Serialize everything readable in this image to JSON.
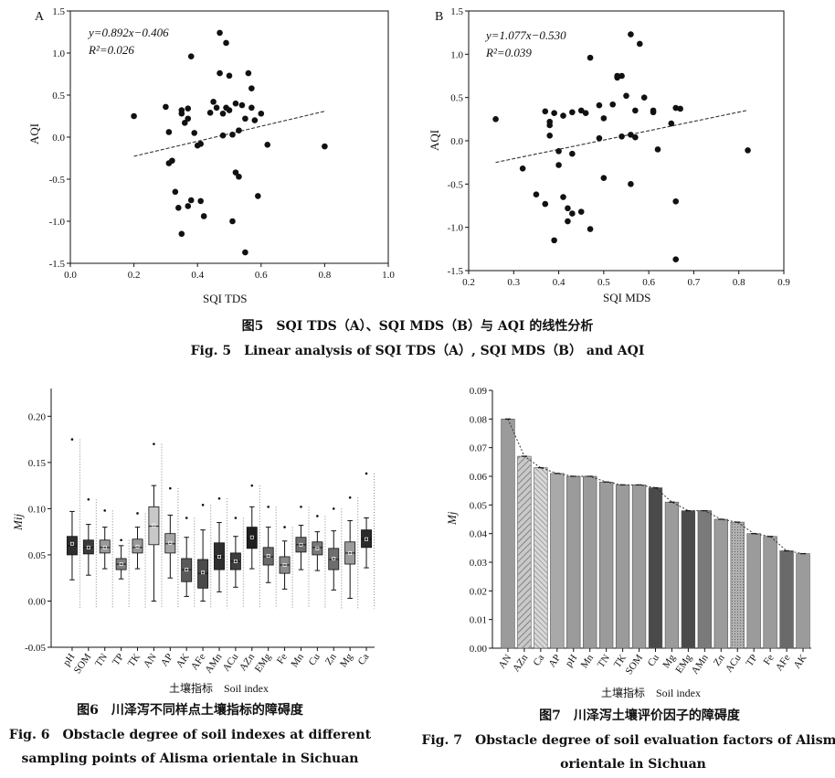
{
  "fig5": {
    "caption_cn": "图5　SQI TDS（A）、SQI MDS（B）与 AQI 的线性分析",
    "caption_en": "Fig. 5　Linear analysis of SQI TDS（A）, SQI MDS（B） and AQI"
  },
  "fig6": {
    "caption_cn": "图6　川泽泻不同样点土壤指标的障碍度",
    "caption_en_1": "Fig. 6　Obstacle degree of soil indexes at different",
    "caption_en_2": "sampling points of Alisma orientale in Sichuan"
  },
  "fig7": {
    "caption_cn": "图7　川泽泻土壤评价因子的障碍度",
    "caption_en_1": "Fig. 7　Obstacle degree of soil evaluation factors of Alisma",
    "caption_en_2": "orientale in Sichuan"
  },
  "chart_data": [
    {
      "type": "scatter",
      "panel": "A",
      "xlabel": "SQI TDS",
      "ylabel": "AQI",
      "xlim": [
        0.0,
        1.0
      ],
      "ylim": [
        -1.5,
        1.5
      ],
      "xticks": [
        "0.0",
        "0.2",
        "0.4",
        "0.6",
        "0.8",
        "1.0"
      ],
      "yticks": [
        "-1.5",
        "-1.0",
        "-0.5",
        "0.0",
        "0.5",
        "1.0",
        "1.5"
      ],
      "equation": "y=0.892x−0.406",
      "r2": "R²=0.026",
      "trend": {
        "slope": 0.892,
        "intercept": -0.406,
        "x_from": 0.2,
        "x_to": 0.8
      },
      "points": [
        [
          0.2,
          0.25
        ],
        [
          0.3,
          0.36
        ],
        [
          0.31,
          0.06
        ],
        [
          0.32,
          -0.28
        ],
        [
          0.31,
          -0.31
        ],
        [
          0.33,
          -0.65
        ],
        [
          0.34,
          -0.84
        ],
        [
          0.35,
          -1.15
        ],
        [
          0.35,
          0.28
        ],
        [
          0.35,
          0.32
        ],
        [
          0.36,
          0.17
        ],
        [
          0.37,
          0.22
        ],
        [
          0.37,
          0.34
        ],
        [
          0.38,
          -0.75
        ],
        [
          0.37,
          -0.82
        ],
        [
          0.39,
          0.05
        ],
        [
          0.4,
          -0.1
        ],
        [
          0.41,
          -0.08
        ],
        [
          0.41,
          -0.76
        ],
        [
          0.42,
          -0.94
        ],
        [
          0.44,
          0.29
        ],
        [
          0.45,
          0.42
        ],
        [
          0.46,
          0.35
        ],
        [
          0.47,
          1.24
        ],
        [
          0.47,
          0.76
        ],
        [
          0.48,
          0.28
        ],
        [
          0.48,
          0.02
        ],
        [
          0.49,
          1.12
        ],
        [
          0.49,
          0.35
        ],
        [
          0.5,
          0.73
        ],
        [
          0.5,
          0.32
        ],
        [
          0.51,
          0.03
        ],
        [
          0.51,
          -1.0
        ],
        [
          0.52,
          -0.42
        ],
        [
          0.52,
          0.4
        ],
        [
          0.53,
          -0.47
        ],
        [
          0.53,
          0.08
        ],
        [
          0.54,
          0.38
        ],
        [
          0.55,
          0.22
        ],
        [
          0.55,
          -1.37
        ],
        [
          0.56,
          0.76
        ],
        [
          0.57,
          0.58
        ],
        [
          0.57,
          0.35
        ],
        [
          0.58,
          0.2
        ],
        [
          0.59,
          -0.7
        ],
        [
          0.6,
          0.28
        ],
        [
          0.62,
          -0.09
        ],
        [
          0.8,
          -0.11
        ],
        [
          0.38,
          0.96
        ]
      ]
    },
    {
      "type": "scatter",
      "panel": "B",
      "xlabel": "SQI MDS",
      "ylabel": "AQI",
      "xlim": [
        0.2,
        0.9
      ],
      "ylim": [
        -1.5,
        1.5
      ],
      "xticks": [
        "0.2",
        "0.3",
        "0.4",
        "0.5",
        "0.6",
        "0.7",
        "0.8",
        "0.9"
      ],
      "yticks": [
        "-1.5",
        "-1.0",
        "-0.5",
        "0.0",
        "0.5",
        "1.0",
        "1.5"
      ],
      "equation": "y=1.077x−0.530",
      "r2": "R²=0.039",
      "trend": {
        "slope": 1.077,
        "intercept": -0.53,
        "x_from": 0.26,
        "x_to": 0.82
      },
      "points": [
        [
          0.26,
          0.25
        ],
        [
          0.32,
          -0.32
        ],
        [
          0.35,
          -0.62
        ],
        [
          0.37,
          -0.73
        ],
        [
          0.37,
          0.34
        ],
        [
          0.38,
          0.06
        ],
        [
          0.38,
          0.18
        ],
        [
          0.38,
          0.22
        ],
        [
          0.39,
          0.32
        ],
        [
          0.39,
          -1.15
        ],
        [
          0.4,
          -0.28
        ],
        [
          0.4,
          -0.12
        ],
        [
          0.41,
          -0.65
        ],
        [
          0.41,
          0.29
        ],
        [
          0.42,
          -0.78
        ],
        [
          0.42,
          -0.93
        ],
        [
          0.43,
          -0.84
        ],
        [
          0.43,
          -0.15
        ],
        [
          0.43,
          0.33
        ],
        [
          0.45,
          0.35
        ],
        [
          0.45,
          -0.82
        ],
        [
          0.46,
          0.32
        ],
        [
          0.47,
          0.96
        ],
        [
          0.47,
          -1.02
        ],
        [
          0.49,
          0.41
        ],
        [
          0.49,
          0.03
        ],
        [
          0.5,
          -0.43
        ],
        [
          0.5,
          0.26
        ],
        [
          0.52,
          0.42
        ],
        [
          0.53,
          0.73
        ],
        [
          0.53,
          0.75
        ],
        [
          0.54,
          0.05
        ],
        [
          0.54,
          0.75
        ],
        [
          0.55,
          0.52
        ],
        [
          0.56,
          -0.5
        ],
        [
          0.56,
          0.07
        ],
        [
          0.56,
          1.23
        ],
        [
          0.57,
          0.04
        ],
        [
          0.57,
          0.35
        ],
        [
          0.58,
          1.12
        ],
        [
          0.59,
          0.5
        ],
        [
          0.61,
          0.35
        ],
        [
          0.61,
          0.33
        ],
        [
          0.62,
          -0.1
        ],
        [
          0.65,
          0.2
        ],
        [
          0.66,
          0.38
        ],
        [
          0.66,
          -0.7
        ],
        [
          0.66,
          -1.37
        ],
        [
          0.67,
          0.37
        ],
        [
          0.82,
          -0.11
        ]
      ]
    },
    {
      "type": "box",
      "ylabel": "Mij",
      "xlabel": "土壤指标　Soil index",
      "ylim": [
        -0.05,
        0.23
      ],
      "yticks": [
        "-0.05",
        "0.00",
        "0.05",
        "0.10",
        "0.15",
        "0.20"
      ],
      "categories": [
        "pH",
        "SOM",
        "TN",
        "TP",
        "TK",
        "AN",
        "AP",
        "AK",
        "AFe",
        "AMn",
        "ACu",
        "AZn",
        "EMg",
        "Fe",
        "Mn",
        "Cu",
        "Zn",
        "Mg",
        "Ca"
      ],
      "boxes": [
        {
          "q1": 0.05,
          "median": 0.06,
          "q3": 0.07,
          "low": 0.023,
          "high": 0.097,
          "mean": 0.062,
          "fill": "#2e2e2e",
          "max": 0.175
        },
        {
          "q1": 0.051,
          "median": 0.058,
          "q3": 0.066,
          "low": 0.028,
          "high": 0.083,
          "mean": 0.058,
          "fill": "#3b3b3b",
          "max": 0.11
        },
        {
          "q1": 0.052,
          "median": 0.058,
          "q3": 0.066,
          "low": 0.035,
          "high": 0.08,
          "mean": 0.058,
          "fill": "#9a9a9a",
          "max": 0.098
        },
        {
          "q1": 0.034,
          "median": 0.04,
          "q3": 0.046,
          "low": 0.024,
          "high": 0.06,
          "mean": 0.04,
          "fill": "#808080",
          "max": 0.066
        },
        {
          "q1": 0.052,
          "median": 0.058,
          "q3": 0.067,
          "low": 0.035,
          "high": 0.08,
          "mean": 0.059,
          "fill": "#9a9a9a",
          "max": 0.095
        },
        {
          "q1": 0.061,
          "median": 0.081,
          "q3": 0.102,
          "low": 0.0,
          "high": 0.125,
          "mean": 0.082,
          "fill": "#c8c8c8",
          "max": 0.17
        },
        {
          "q1": 0.052,
          "median": 0.062,
          "q3": 0.073,
          "low": 0.025,
          "high": 0.093,
          "mean": 0.063,
          "fill": "#a6a6a6",
          "max": 0.122
        },
        {
          "q1": 0.021,
          "median": 0.034,
          "q3": 0.046,
          "low": 0.005,
          "high": 0.069,
          "mean": 0.034,
          "fill": "#5a5a5a",
          "max": 0.09
        },
        {
          "q1": 0.014,
          "median": 0.03,
          "q3": 0.045,
          "low": 0.0,
          "high": 0.077,
          "mean": 0.031,
          "fill": "#4a4a4a",
          "max": 0.104
        },
        {
          "q1": 0.034,
          "median": 0.048,
          "q3": 0.063,
          "low": 0.01,
          "high": 0.085,
          "mean": 0.048,
          "fill": "#2e2e2e",
          "max": 0.111
        },
        {
          "q1": 0.034,
          "median": 0.043,
          "q3": 0.052,
          "low": 0.015,
          "high": 0.07,
          "mean": 0.043,
          "fill": "#3e3e3e",
          "max": 0.09
        },
        {
          "q1": 0.057,
          "median": 0.068,
          "q3": 0.08,
          "low": 0.035,
          "high": 0.102,
          "mean": 0.069,
          "fill": "#1f1f1f",
          "max": 0.125
        },
        {
          "q1": 0.039,
          "median": 0.048,
          "q3": 0.058,
          "low": 0.02,
          "high": 0.08,
          "mean": 0.049,
          "fill": "#6a6a6a",
          "max": 0.102
        },
        {
          "q1": 0.03,
          "median": 0.039,
          "q3": 0.048,
          "low": 0.013,
          "high": 0.065,
          "mean": 0.039,
          "fill": "#8a8a8a",
          "max": 0.08
        },
        {
          "q1": 0.053,
          "median": 0.061,
          "q3": 0.069,
          "low": 0.034,
          "high": 0.082,
          "mean": 0.061,
          "fill": "#6e6e6e",
          "max": 0.102
        },
        {
          "q1": 0.05,
          "median": 0.058,
          "q3": 0.064,
          "low": 0.033,
          "high": 0.075,
          "mean": 0.057,
          "fill": "#7a7a7a",
          "max": 0.092
        },
        {
          "q1": 0.034,
          "median": 0.045,
          "q3": 0.057,
          "low": 0.012,
          "high": 0.076,
          "mean": 0.046,
          "fill": "#6e6e6e",
          "max": 0.1
        },
        {
          "q1": 0.04,
          "median": 0.052,
          "q3": 0.064,
          "low": 0.003,
          "high": 0.087,
          "mean": 0.052,
          "fill": "#9c9c9c",
          "max": 0.112
        },
        {
          "q1": 0.058,
          "median": 0.067,
          "q3": 0.077,
          "low": 0.036,
          "high": 0.09,
          "mean": 0.067,
          "fill": "#2a2a2a",
          "max": 0.138
        }
      ]
    },
    {
      "type": "bar",
      "ylabel": "Mj",
      "xlabel": "土壤指标　Soil index",
      "ylim": [
        0.0,
        0.09
      ],
      "yticks": [
        "0.00",
        "0.01",
        "0.02",
        "0.03",
        "0.04",
        "0.05",
        "0.06",
        "0.07",
        "0.08",
        "0.09"
      ],
      "categories": [
        "AN",
        "AZn",
        "Ca",
        "AP",
        "pH",
        "Mn",
        "TN",
        "TK",
        "SOM",
        "Cu",
        "Mg",
        "EMg",
        "AMn",
        "Zn",
        "ACu",
        "TP",
        "Fe",
        "AFe",
        "AK"
      ],
      "values": [
        0.08,
        0.067,
        0.063,
        0.061,
        0.06,
        0.06,
        0.058,
        0.057,
        0.057,
        0.056,
        0.051,
        0.048,
        0.048,
        0.045,
        0.044,
        0.04,
        0.039,
        0.034,
        0.033
      ],
      "fills": [
        "#9b9b9b",
        "hatchA",
        "hatchB",
        "#a9a9a9",
        "#9b9b9b",
        "#9b9b9b",
        "#9b9b9b",
        "#9b9b9b",
        "#9b9b9b",
        "#4a4a4a",
        "#9b9b9b",
        "#4a4a4a",
        "#7a7a7a",
        "#9b9b9b",
        "hatchC",
        "#9b9b9b",
        "#9b9b9b",
        "#6a6a6a",
        "#9b9b9b"
      ]
    }
  ]
}
